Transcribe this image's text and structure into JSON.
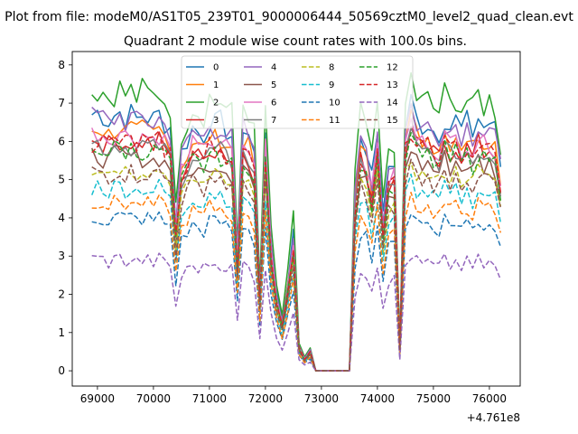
{
  "figure": {
    "suptitle": "Plot from file: modeM0/AS1T05_239T01_9000006444_50569cztM0_level2_quad_clean.evt",
    "title": "Quadrant 2 module wise count rates with 100.0s bins.",
    "offset_text": "+4.761e8"
  },
  "chart_data": {
    "type": "line",
    "title": "Quadrant 2 module wise count rates with 100.0s bins.",
    "xlabel": "",
    "ylabel": "",
    "x_offset": 476100000,
    "xlim": [
      68550,
      76550
    ],
    "ylim": [
      -0.4,
      8.35
    ],
    "xticks": [
      69000,
      70000,
      71000,
      72000,
      73000,
      74000,
      75000,
      76000
    ],
    "xtick_labels": [
      "69000",
      "70000",
      "71000",
      "72000",
      "73000",
      "74000",
      "75000",
      "76000"
    ],
    "yticks": [
      0,
      1,
      2,
      3,
      4,
      5,
      6,
      7,
      8
    ],
    "ytick_labels": [
      "0",
      "1",
      "2",
      "3",
      "4",
      "5",
      "6",
      "7",
      "8"
    ],
    "grid": false,
    "legend": {
      "placement": "top-center",
      "columns": 4
    },
    "x": [
      68900,
      69000,
      69100,
      69200,
      69300,
      69400,
      69500,
      69600,
      69700,
      69800,
      69900,
      70000,
      70100,
      70200,
      70300,
      70400,
      70500,
      70600,
      70700,
      70800,
      70900,
      71000,
      71100,
      71200,
      71300,
      71400,
      71500,
      71600,
      71700,
      71800,
      71900,
      72000,
      72100,
      72200,
      72300,
      72400,
      72500,
      72600,
      72700,
      72800,
      72900,
      73000,
      73100,
      73200,
      73300,
      73400,
      73500,
      73600,
      73700,
      73800,
      73900,
      74000,
      74100,
      74200,
      74300,
      74400,
      74500,
      74600,
      74700,
      74800,
      74900,
      75000,
      75100,
      75200,
      75300,
      75400,
      75500,
      75600,
      75700,
      75800,
      75900,
      76000,
      76100,
      76200
    ],
    "series": [
      {
        "name": "0",
        "color": "#1f77b4",
        "dash": false,
        "base": 6.7,
        "jitter": 0.35
      },
      {
        "name": "1",
        "color": "#ff7f0e",
        "dash": false,
        "base": 6.3,
        "jitter": 0.3
      },
      {
        "name": "2",
        "color": "#2ca02c",
        "dash": false,
        "base": 7.3,
        "jitter": 0.4
      },
      {
        "name": "3",
        "color": "#d62728",
        "dash": false,
        "base": 6.0,
        "jitter": 0.3
      },
      {
        "name": "4",
        "color": "#9467bd",
        "dash": false,
        "base": 6.6,
        "jitter": 0.35
      },
      {
        "name": "5",
        "color": "#8c564b",
        "dash": false,
        "base": 5.6,
        "jitter": 0.3
      },
      {
        "name": "6",
        "color": "#e377c2",
        "dash": false,
        "base": 6.2,
        "jitter": 0.3
      },
      {
        "name": "7",
        "color": "#7f7f7f",
        "dash": false,
        "base": 5.9,
        "jitter": 0.3
      },
      {
        "name": "8",
        "color": "#bcbd22",
        "dash": true,
        "base": 5.3,
        "jitter": 0.25
      },
      {
        "name": "9",
        "color": "#17becf",
        "dash": true,
        "base": 4.8,
        "jitter": 0.25
      },
      {
        "name": "10",
        "color": "#1f77b4",
        "dash": true,
        "base": 4.0,
        "jitter": 0.25
      },
      {
        "name": "11",
        "color": "#ff7f0e",
        "dash": true,
        "base": 4.4,
        "jitter": 0.2
      },
      {
        "name": "12",
        "color": "#2ca02c",
        "dash": true,
        "base": 5.8,
        "jitter": 0.3
      },
      {
        "name": "13",
        "color": "#d62728",
        "dash": true,
        "base": 6.0,
        "jitter": 0.3
      },
      {
        "name": "14",
        "color": "#9467bd",
        "dash": true,
        "base": 2.9,
        "jitter": 0.2
      },
      {
        "name": "15",
        "color": "#8c564b",
        "dash": true,
        "base": 5.2,
        "jitter": 0.25
      }
    ],
    "profile": [
      1.0,
      1.01,
      1.0,
      0.98,
      1.0,
      1.01,
      0.99,
      1.0,
      0.98,
      1.0,
      0.99,
      0.98,
      1.0,
      0.97,
      0.95,
      0.58,
      0.85,
      0.9,
      0.95,
      0.93,
      0.92,
      0.98,
      0.96,
      0.97,
      0.94,
      0.92,
      0.45,
      0.96,
      0.93,
      0.85,
      0.3,
      0.95,
      0.5,
      0.3,
      0.2,
      0.35,
      0.55,
      0.1,
      0.05,
      0.08,
      0.0,
      0.0,
      0.0,
      0.0,
      0.0,
      0.0,
      0.0,
      0.7,
      0.92,
      0.88,
      0.75,
      0.95,
      0.6,
      0.8,
      0.82,
      0.1,
      0.95,
      1.05,
      0.98,
      0.96,
      0.97,
      0.94,
      0.93,
      0.99,
      0.95,
      0.98,
      0.94,
      0.97,
      0.93,
      0.99,
      0.95,
      0.97,
      0.94,
      0.8
    ]
  }
}
